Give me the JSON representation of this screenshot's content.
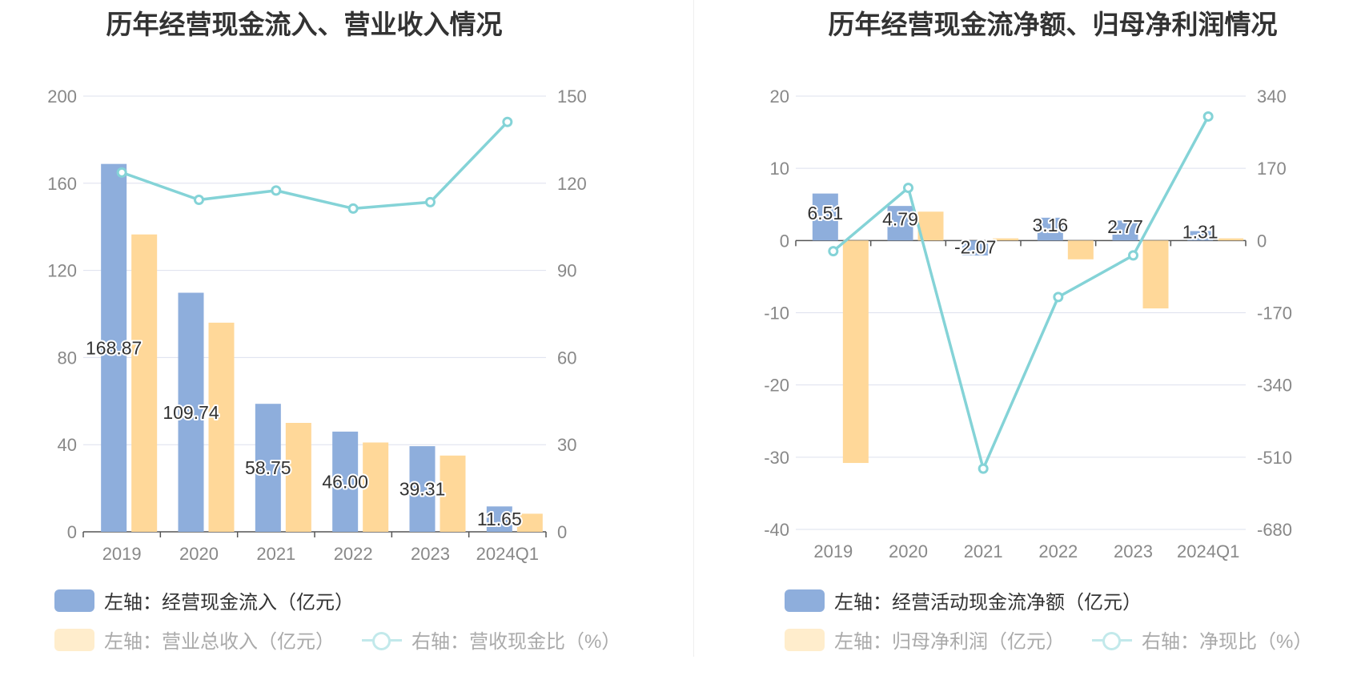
{
  "colors": {
    "blue": "#8eaedc",
    "orange": "#ffd899",
    "teal": "#84d3d7",
    "axis": "#555555",
    "grid": "#dde0ee",
    "tick": "#888888"
  },
  "chart_data": [
    {
      "type": "bar",
      "title": "历年经营现金流入、营业收入情况",
      "categories": [
        "2019",
        "2020",
        "2021",
        "2022",
        "2023",
        "2024Q1"
      ],
      "y_left": {
        "ticks": [
          "0",
          "40",
          "80",
          "120",
          "160",
          "200"
        ],
        "range": [
          0,
          200
        ]
      },
      "y_right": {
        "ticks": [
          "0",
          "30",
          "60",
          "90",
          "120",
          "150"
        ],
        "range": [
          0,
          150
        ]
      },
      "grid": true,
      "legend_position": "bottom-left",
      "series": [
        {
          "name": "左轴：经营现金流入（亿元）",
          "kind": "bar",
          "axis": "left",
          "color": "#8eaedc",
          "values": [
            168.87,
            109.74,
            58.75,
            46.0,
            39.31,
            11.65
          ],
          "labels": [
            "168.87",
            "109.74",
            "58.75",
            "46.00",
            "39.31",
            "11.65"
          ],
          "legend_active": true
        },
        {
          "name": "左轴：营业总收入（亿元）",
          "kind": "bar",
          "axis": "left",
          "color": "#ffd899",
          "values": [
            136.5,
            96.0,
            50.0,
            41.0,
            35.0,
            8.3
          ],
          "legend_active": false
        },
        {
          "name": "右轴：营收现金比（%）",
          "kind": "line",
          "axis": "right",
          "color": "#84d3d7",
          "values": [
            123.7,
            114.3,
            117.5,
            111.3,
            113.5,
            141.1
          ],
          "legend_active": false
        }
      ]
    },
    {
      "type": "bar",
      "title": "历年经营现金流净额、归母净利润情况",
      "categories": [
        "2019",
        "2020",
        "2021",
        "2022",
        "2023",
        "2024Q1"
      ],
      "y_left": {
        "ticks": [
          "-40",
          "-30",
          "-20",
          "-10",
          "0",
          "10",
          "20"
        ],
        "range": [
          -40,
          20
        ]
      },
      "y_right": {
        "ticks": [
          "-680",
          "-510",
          "-340",
          "-170",
          "0",
          "170",
          "340"
        ],
        "range": [
          -680,
          340
        ]
      },
      "grid": true,
      "legend_position": "bottom-left",
      "series": [
        {
          "name": "左轴：经营活动现金流净额（亿元）",
          "kind": "bar",
          "axis": "left",
          "color": "#8eaedc",
          "values": [
            6.51,
            4.79,
            -2.07,
            3.16,
            2.77,
            1.31
          ],
          "labels": [
            "6.51",
            "4.79",
            "-2.07",
            "3.16",
            "2.77",
            "1.31"
          ],
          "legend_active": true
        },
        {
          "name": "左轴：归母净利润（亿元）",
          "kind": "bar",
          "axis": "left",
          "color": "#ffd899",
          "values": [
            -30.8,
            4.0,
            0.3,
            -2.6,
            -9.4,
            0.3
          ],
          "legend_active": false
        },
        {
          "name": "右轴：净现比（%）",
          "kind": "line",
          "axis": "right",
          "color": "#84d3d7",
          "values": [
            -25,
            124,
            -537,
            -133,
            -35,
            292
          ],
          "legend_active": false
        }
      ]
    }
  ]
}
